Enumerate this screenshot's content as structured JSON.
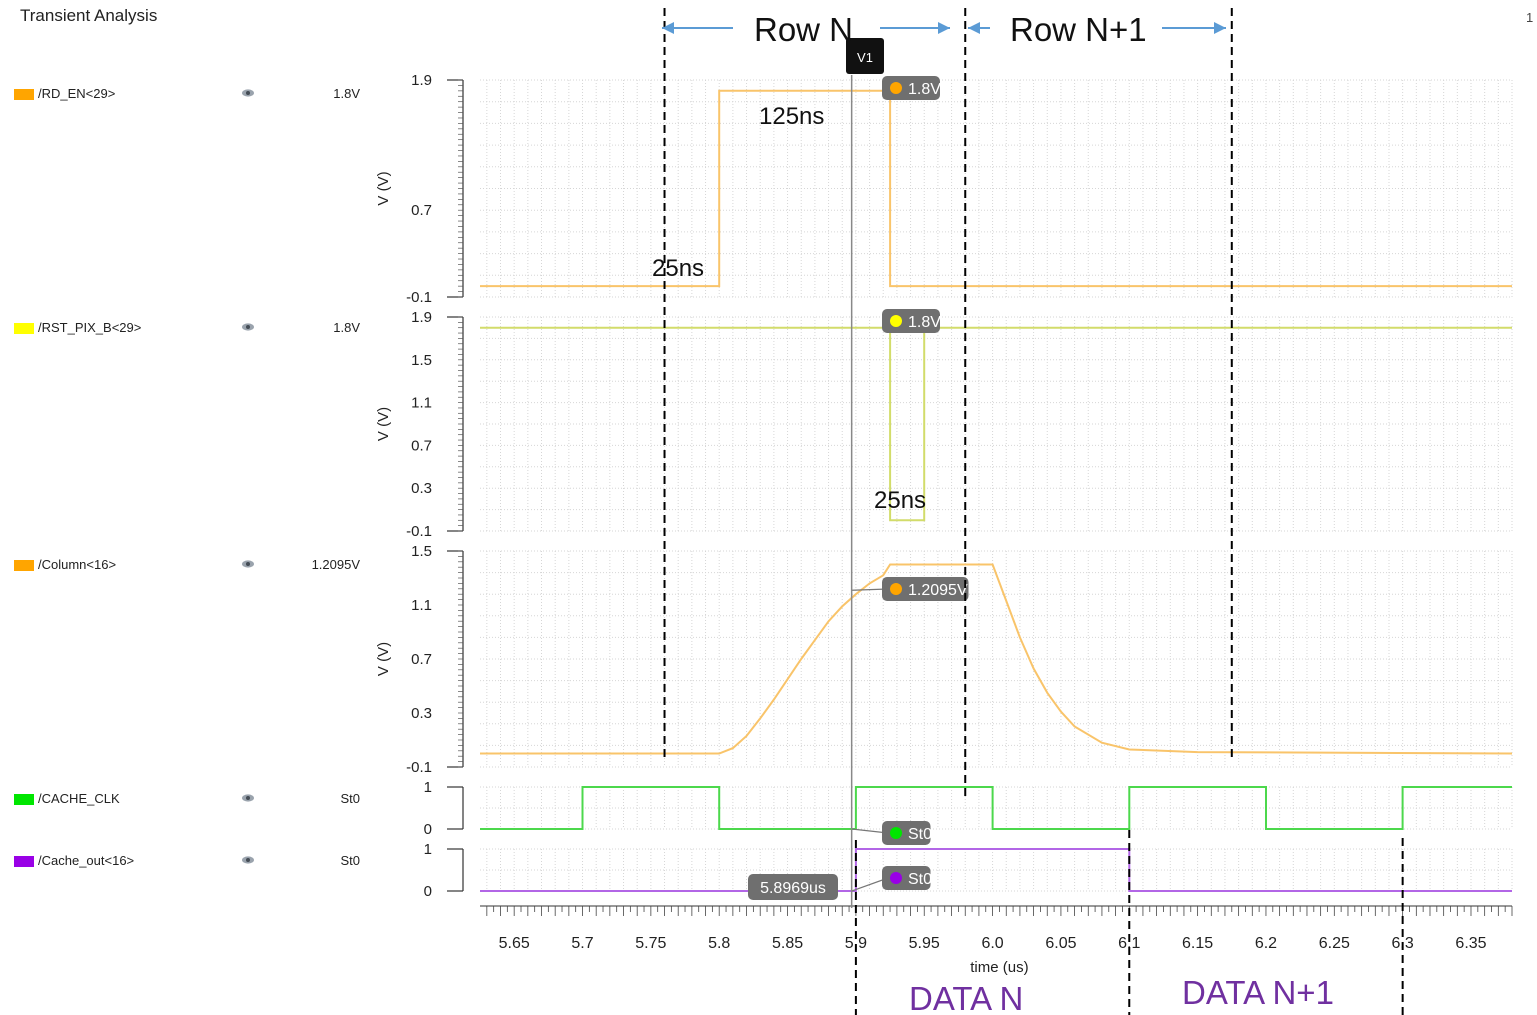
{
  "window": {
    "title": "Transient Analysis",
    "corner_text": "1"
  },
  "signals": [
    {
      "name": "/RD_EN<29>",
      "color": "#ffa500",
      "value": "1.8V"
    },
    {
      "name": "/RST_PIX_B<29>",
      "color": "#ffff00",
      "value": "1.8V"
    },
    {
      "name": "/Column<16>",
      "color": "#ffa500",
      "value": "1.2095V"
    },
    {
      "name": "/CACHE_CLK",
      "color": "#00e600",
      "value": "St0"
    },
    {
      "name": "/Cache_out<16>",
      "color": "#9900e6",
      "value": "St0"
    }
  ],
  "chart_data": {
    "type": "line",
    "xlabel": "time (us)",
    "xlim": [
      5.625,
      6.38
    ],
    "x_ticks": [
      "5.65",
      "5.7",
      "5.75",
      "5.8",
      "5.85",
      "5.9",
      "5.95",
      "6.0",
      "6.05",
      "6.1",
      "6.15",
      "6.2",
      "6.25",
      "6.3",
      "6.35"
    ],
    "cursor": {
      "label": "V1",
      "x": 5.8969,
      "x_readout": "5.8969us"
    },
    "panels": [
      {
        "signal": "/RD_EN<29>",
        "ylabel": "V (V)",
        "ylim": [
          -0.1,
          1.9
        ],
        "y_ticks": [
          "1.9",
          "0.7",
          "-0.1"
        ],
        "series": [
          {
            "name": "/RD_EN<29>",
            "color": "#f9c46a",
            "points": [
              [
                5.625,
                0
              ],
              [
                5.8,
                0
              ],
              [
                5.8,
                1.8
              ],
              [
                5.925,
                1.8
              ],
              [
                5.925,
                0
              ],
              [
                6.38,
                0
              ]
            ]
          }
        ],
        "marker": {
          "label": "1.8V",
          "x": 5.925,
          "y": 1.8,
          "color": "#ffa500"
        }
      },
      {
        "signal": "/RST_PIX_B<29>",
        "ylabel": "V (V)",
        "ylim": [
          -0.1,
          1.9
        ],
        "y_ticks": [
          "1.9",
          "1.5",
          "1.1",
          "0.7",
          "0.3",
          "-0.1"
        ],
        "series": [
          {
            "name": "/RST_PIX_B<29>",
            "color": "#d2dc6a",
            "points": [
              [
                5.625,
                1.8
              ],
              [
                5.925,
                1.8
              ],
              [
                5.925,
                0
              ],
              [
                5.95,
                0
              ],
              [
                5.95,
                1.8
              ],
              [
                6.38,
                1.8
              ]
            ]
          }
        ],
        "marker": {
          "label": "1.8V",
          "x": 5.925,
          "y": 1.8,
          "color": "#ffff00"
        }
      },
      {
        "signal": "/Column<16>",
        "ylabel": "V (V)",
        "ylim": [
          -0.1,
          1.5
        ],
        "y_ticks": [
          "1.5",
          "1.1",
          "0.7",
          "0.3",
          "-0.1"
        ],
        "series": [
          {
            "name": "/Column<16>",
            "color": "#f9c46a",
            "points": [
              [
                5.625,
                0
              ],
              [
                5.8,
                0
              ],
              [
                5.81,
                0.04
              ],
              [
                5.82,
                0.13
              ],
              [
                5.83,
                0.26
              ],
              [
                5.84,
                0.4
              ],
              [
                5.85,
                0.55
              ],
              [
                5.86,
                0.7
              ],
              [
                5.87,
                0.84
              ],
              [
                5.88,
                0.98
              ],
              [
                5.89,
                1.09
              ],
              [
                5.9,
                1.18
              ],
              [
                5.91,
                1.26
              ],
              [
                5.92,
                1.32
              ],
              [
                5.925,
                1.4
              ],
              [
                6.0,
                1.4
              ],
              [
                6.01,
                1.13
              ],
              [
                6.02,
                0.86
              ],
              [
                6.03,
                0.63
              ],
              [
                6.04,
                0.45
              ],
              [
                6.05,
                0.31
              ],
              [
                6.06,
                0.2
              ],
              [
                6.08,
                0.08
              ],
              [
                6.1,
                0.03
              ],
              [
                6.15,
                0.01
              ],
              [
                6.38,
                0
              ]
            ]
          }
        ],
        "marker": {
          "label": "1.2095V",
          "x": 5.897,
          "y": 1.2095,
          "color": "#ffa500"
        }
      },
      {
        "signal": "/CACHE_CLK",
        "ylim": [
          0,
          1
        ],
        "y_ticks": [
          "1",
          "0"
        ],
        "series": [
          {
            "name": "/CACHE_CLK",
            "color": "#4cd84c",
            "points": [
              [
                5.625,
                0
              ],
              [
                5.7,
                0
              ],
              [
                5.7,
                1
              ],
              [
                5.8,
                1
              ],
              [
                5.8,
                0
              ],
              [
                5.9,
                0
              ],
              [
                5.9,
                1
              ],
              [
                6.0,
                1
              ],
              [
                6.0,
                0
              ],
              [
                6.1,
                0
              ],
              [
                6.1,
                1
              ],
              [
                6.2,
                1
              ],
              [
                6.2,
                0
              ],
              [
                6.3,
                0
              ],
              [
                6.3,
                1
              ],
              [
                6.38,
                1
              ]
            ]
          }
        ],
        "marker": {
          "label": "St0",
          "x": 5.897,
          "y": 0,
          "color": "#00e600"
        }
      },
      {
        "signal": "/Cache_out<16>",
        "ylim": [
          0,
          1
        ],
        "y_ticks": [
          "1",
          "0"
        ],
        "series": [
          {
            "name": "/Cache_out<16>",
            "color": "#b266e6",
            "points": [
              [
                5.625,
                0
              ],
              [
                5.9,
                0
              ],
              [
                5.9,
                1
              ],
              [
                6.1,
                1
              ],
              [
                6.1,
                0
              ],
              [
                6.38,
                0
              ]
            ]
          }
        ],
        "marker": {
          "label": "St0",
          "x": 5.897,
          "y": 0,
          "color": "#9900e6"
        }
      }
    ],
    "annotations": {
      "row_n": "Row N",
      "row_n1": "Row N+1",
      "t125": "125ns",
      "t25a": "25ns",
      "t25b": "25ns",
      "data_n": "DATA N",
      "data_n1": "DATA N+1",
      "data_color": "#7030a0",
      "row_boundaries_x": [
        5.76,
        5.98,
        6.175
      ],
      "data_boundaries_x": [
        5.9,
        6.1,
        6.3
      ]
    }
  }
}
